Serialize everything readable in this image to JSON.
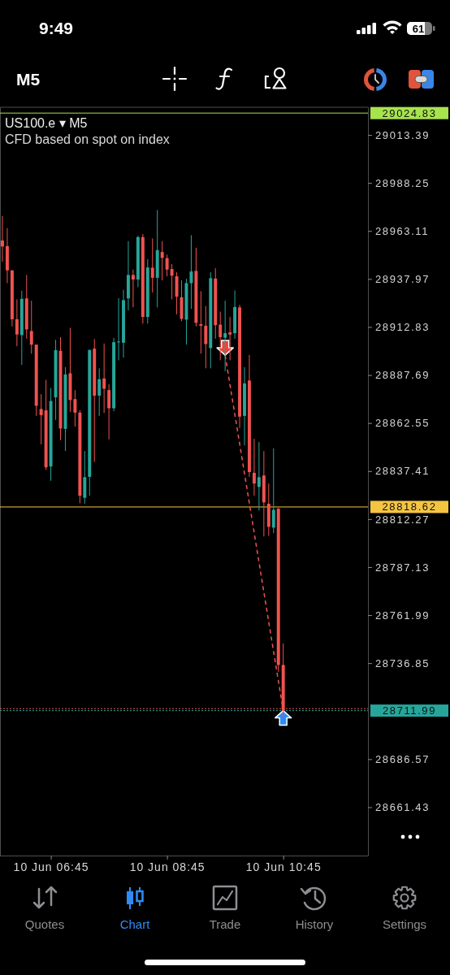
{
  "chart_data": {
    "type": "candlestick",
    "title": "US100.e ▾ M5",
    "subtitle": "CFD based on spot on index",
    "categories": [
      null,
      null,
      null,
      null,
      null,
      null,
      null,
      null,
      null,
      null,
      "10 Jun 06:45",
      null,
      null,
      null,
      null,
      null,
      null,
      null,
      null,
      null,
      null,
      null,
      null,
      null,
      null,
      null,
      null,
      null,
      null,
      null,
      null,
      null,
      null,
      null,
      "10 Jun 08:45",
      null,
      null,
      null,
      null,
      null,
      null,
      null,
      null,
      null,
      null,
      null,
      null,
      null,
      null,
      null,
      null,
      null,
      null,
      null,
      null,
      null,
      null,
      null,
      "10 Jun 10:45",
      null,
      null,
      null,
      null,
      null,
      null,
      null,
      null,
      null,
      null,
      null,
      null,
      null,
      null,
      null,
      null,
      null
    ],
    "ohlc": [
      [
        28958.1,
        28970.9,
        28947.0,
        28955.0
      ],
      [
        28955.2,
        28964.6,
        28935.8,
        28942.5
      ],
      [
        28942.5,
        28942.5,
        28913.1,
        28916.9
      ],
      [
        28916.9,
        28927.3,
        28902.8,
        28908.9
      ],
      [
        28908.6,
        28931.8,
        28893.0,
        28927.6
      ],
      [
        28927.8,
        28940.1,
        28906.7,
        28911.6
      ],
      [
        28910.7,
        28926.6,
        28898.9,
        28903.6
      ],
      [
        28903.6,
        28903.6,
        28866.3,
        28871.6
      ],
      [
        28869.9,
        28877.7,
        28851.4,
        28866.7
      ],
      [
        28869.2,
        28885.2,
        28838.0,
        28839.4
      ],
      [
        28839.8,
        28880.9,
        28832.3,
        28874.1
      ],
      [
        28876.0,
        28906.1,
        28864.2,
        28900.7
      ],
      [
        28900.4,
        28907.5,
        28853.6,
        28859.7
      ],
      [
        28859.5,
        28891.8,
        28847.9,
        28888.0
      ],
      [
        28888.6,
        28912.4,
        28868.4,
        28874.6
      ],
      [
        28875.1,
        28879.8,
        28860.7,
        28868.0
      ],
      [
        28868.0,
        28869.2,
        28820.6,
        28824.5
      ],
      [
        28823.4,
        28847.9,
        28820.3,
        28834.2
      ],
      [
        28834.4,
        28901.0,
        28824.5,
        28900.8
      ],
      [
        28901.5,
        28906.5,
        28842.2,
        28876.9
      ],
      [
        28876.9,
        28891.2,
        28866.3,
        28885.5
      ],
      [
        28885.9,
        28904.2,
        28867.8,
        28880.5
      ],
      [
        28879.8,
        28882.9,
        28854.0,
        28870.3
      ],
      [
        28870.3,
        28907.1,
        28868.7,
        28904.9
      ],
      [
        28904.9,
        28928.0,
        28895.4,
        28905.2
      ],
      [
        28904.6,
        28932.3,
        28896.8,
        28926.9
      ],
      [
        28927.8,
        28957.8,
        28921.6,
        28940.1
      ],
      [
        28940.1,
        28942.9,
        28923.1,
        28937.7
      ],
      [
        28937.7,
        28960.6,
        28933.7,
        28959.9
      ],
      [
        28959.9,
        28961.5,
        28914.6,
        28918.1
      ],
      [
        28918.1,
        28948.3,
        28914.6,
        28944.0
      ],
      [
        28943.9,
        28959.2,
        28930.9,
        28938.6
      ],
      [
        28938.6,
        28974.1,
        28923.1,
        28953.1
      ],
      [
        28952.1,
        28957.8,
        28937.2,
        28949.0
      ],
      [
        28948.9,
        28950.7,
        28939.4,
        28942.9
      ],
      [
        28943.2,
        28945.7,
        28927.3,
        28939.7
      ],
      [
        28939.4,
        28941.5,
        28919.5,
        28928.7
      ],
      [
        28928.4,
        28937.2,
        28915.9,
        28917.1
      ],
      [
        28916.7,
        28938.0,
        28903.6,
        28935.8
      ],
      [
        28935.8,
        28960.9,
        28922.3,
        28941.9
      ],
      [
        28942.2,
        28954.3,
        28913.1,
        28915.0
      ],
      [
        28914.3,
        28931.6,
        28898.9,
        28913.5
      ],
      [
        28913.5,
        28923.8,
        28891.2,
        28903.9
      ],
      [
        28901.8,
        28941.5,
        28891.2,
        28938.4
      ],
      [
        28938.2,
        28943.6,
        28906.7,
        28913.8
      ],
      [
        28914.1,
        28920.9,
        28895.4,
        28907.5
      ],
      [
        28907.2,
        28926.6,
        28889.7,
        28909.6
      ],
      [
        28910.0,
        28918.1,
        28895.4,
        28908.9
      ],
      [
        28909.6,
        28932.0,
        28906.7,
        28923.3
      ],
      [
        28923.1,
        28924.5,
        28859.9,
        28865.9
      ],
      [
        28866.3,
        28891.8,
        28850.8,
        28883.3
      ],
      [
        28884.8,
        28898.2,
        28834.4,
        28836.9
      ],
      [
        28836.5,
        28854.3,
        28824.5,
        28830.9
      ],
      [
        28829.1,
        28852.6,
        28816.7,
        28834.2
      ],
      [
        28835.1,
        28847.9,
        28803.2,
        28821.0
      ],
      [
        28820.3,
        28830.9,
        28803.5,
        28808.2
      ],
      [
        28807.8,
        28849.3,
        28804.9,
        28817.1
      ],
      [
        28817.7,
        28818.1,
        28732.3,
        28735.9
      ],
      [
        28735.9,
        28747.2,
        28708.0,
        28711.99
      ],
      null,
      null,
      null,
      null,
      null,
      null,
      null,
      null,
      null,
      null,
      null,
      null,
      null,
      null,
      null,
      null,
      null
    ],
    "colors": [
      "#ef5350",
      "#ef5350",
      "#ef5350",
      "#ef5350",
      "#26a69a",
      "#ef5350",
      "#ef5350",
      "#ef5350",
      "#ef5350",
      "#ef5350",
      "#26a69a",
      "#26a69a",
      "#ef5350",
      "#26a69a",
      "#ef5350",
      "#ef5350",
      "#ef5350",
      "#26a69a",
      "#26a69a",
      "#ef5350",
      "#26a69a",
      "#ef5350",
      "#ef5350",
      "#26a69a",
      "#26a69a",
      "#26a69a",
      "#26a69a",
      "#ef5350",
      "#26a69a",
      "#ef5350",
      "#26a69a",
      "#ef5350",
      "#26a69a",
      "#ef5350",
      "#ef5350",
      "#ef5350",
      "#ef5350",
      "#ef5350",
      "#26a69a",
      "#26a69a",
      "#ef5350",
      "#ef5350",
      "#ef5350",
      "#26a69a",
      "#ef5350",
      "#ef5350",
      "#26a69a",
      "#ef5350",
      "#26a69a",
      "#ef5350",
      "#26a69a",
      "#ef5350",
      "#ef5350",
      "#26a69a",
      "#ef5350",
      "#ef5350",
      "#26a69a",
      "#ef5350",
      "#ef5350",
      null,
      null,
      null,
      null,
      null,
      null,
      null,
      null,
      null,
      null,
      null,
      null,
      null,
      null,
      null,
      null,
      null
    ],
    "series": [
      {
        "type": "line",
        "color": "#ef5350",
        "line_style": "dashed",
        "values": [
          null,
          null,
          null,
          null,
          null,
          null,
          null,
          null,
          null,
          null,
          null,
          null,
          null,
          null,
          null,
          null,
          null,
          null,
          null,
          null,
          null,
          null,
          null,
          null,
          null,
          null,
          null,
          null,
          null,
          null,
          null,
          null,
          null,
          null,
          null,
          null,
          null,
          null,
          null,
          null,
          null,
          null,
          null,
          null,
          null,
          null,
          28898.1,
          28882.6,
          28867.1,
          28851.6,
          28836.1,
          28820.6,
          28805.1,
          28789.5,
          28774.0,
          28758.5,
          28743.0,
          28727.5,
          28712.0,
          null,
          null,
          null,
          null,
          null,
          null,
          null,
          null,
          null,
          null,
          null,
          null,
          null,
          null,
          null,
          null,
          null
        ]
      }
    ],
    "ylim": [
      28636.1,
      29028.1
    ],
    "yticks": [
      28661.43,
      28686.57,
      28736.85,
      28761.99,
      28787.13,
      28812.27,
      28837.41,
      28862.55,
      28887.69,
      28912.83,
      28937.97,
      28963.11,
      28988.25,
      29013.39
    ],
    "ref_lines": [
      {
        "axis": "y",
        "value": 29024.83,
        "label": "29024.83",
        "color": "#a6e34d"
      },
      {
        "axis": "y",
        "value": 28818.62,
        "label": "28818.62",
        "color": "#f5c542"
      },
      {
        "axis": "y",
        "value": 28713.0,
        "color": "#ef5350",
        "line_style": "dotted"
      },
      {
        "axis": "y",
        "value": 28711.99,
        "label": "28711.99",
        "color": "#26a69a",
        "line_style": "dotted"
      }
    ],
    "annotations": [
      "9:49",
      "61",
      "M5",
      "Quotes",
      "Chart",
      "Trade",
      "History",
      "Settings"
    ]
  }
}
